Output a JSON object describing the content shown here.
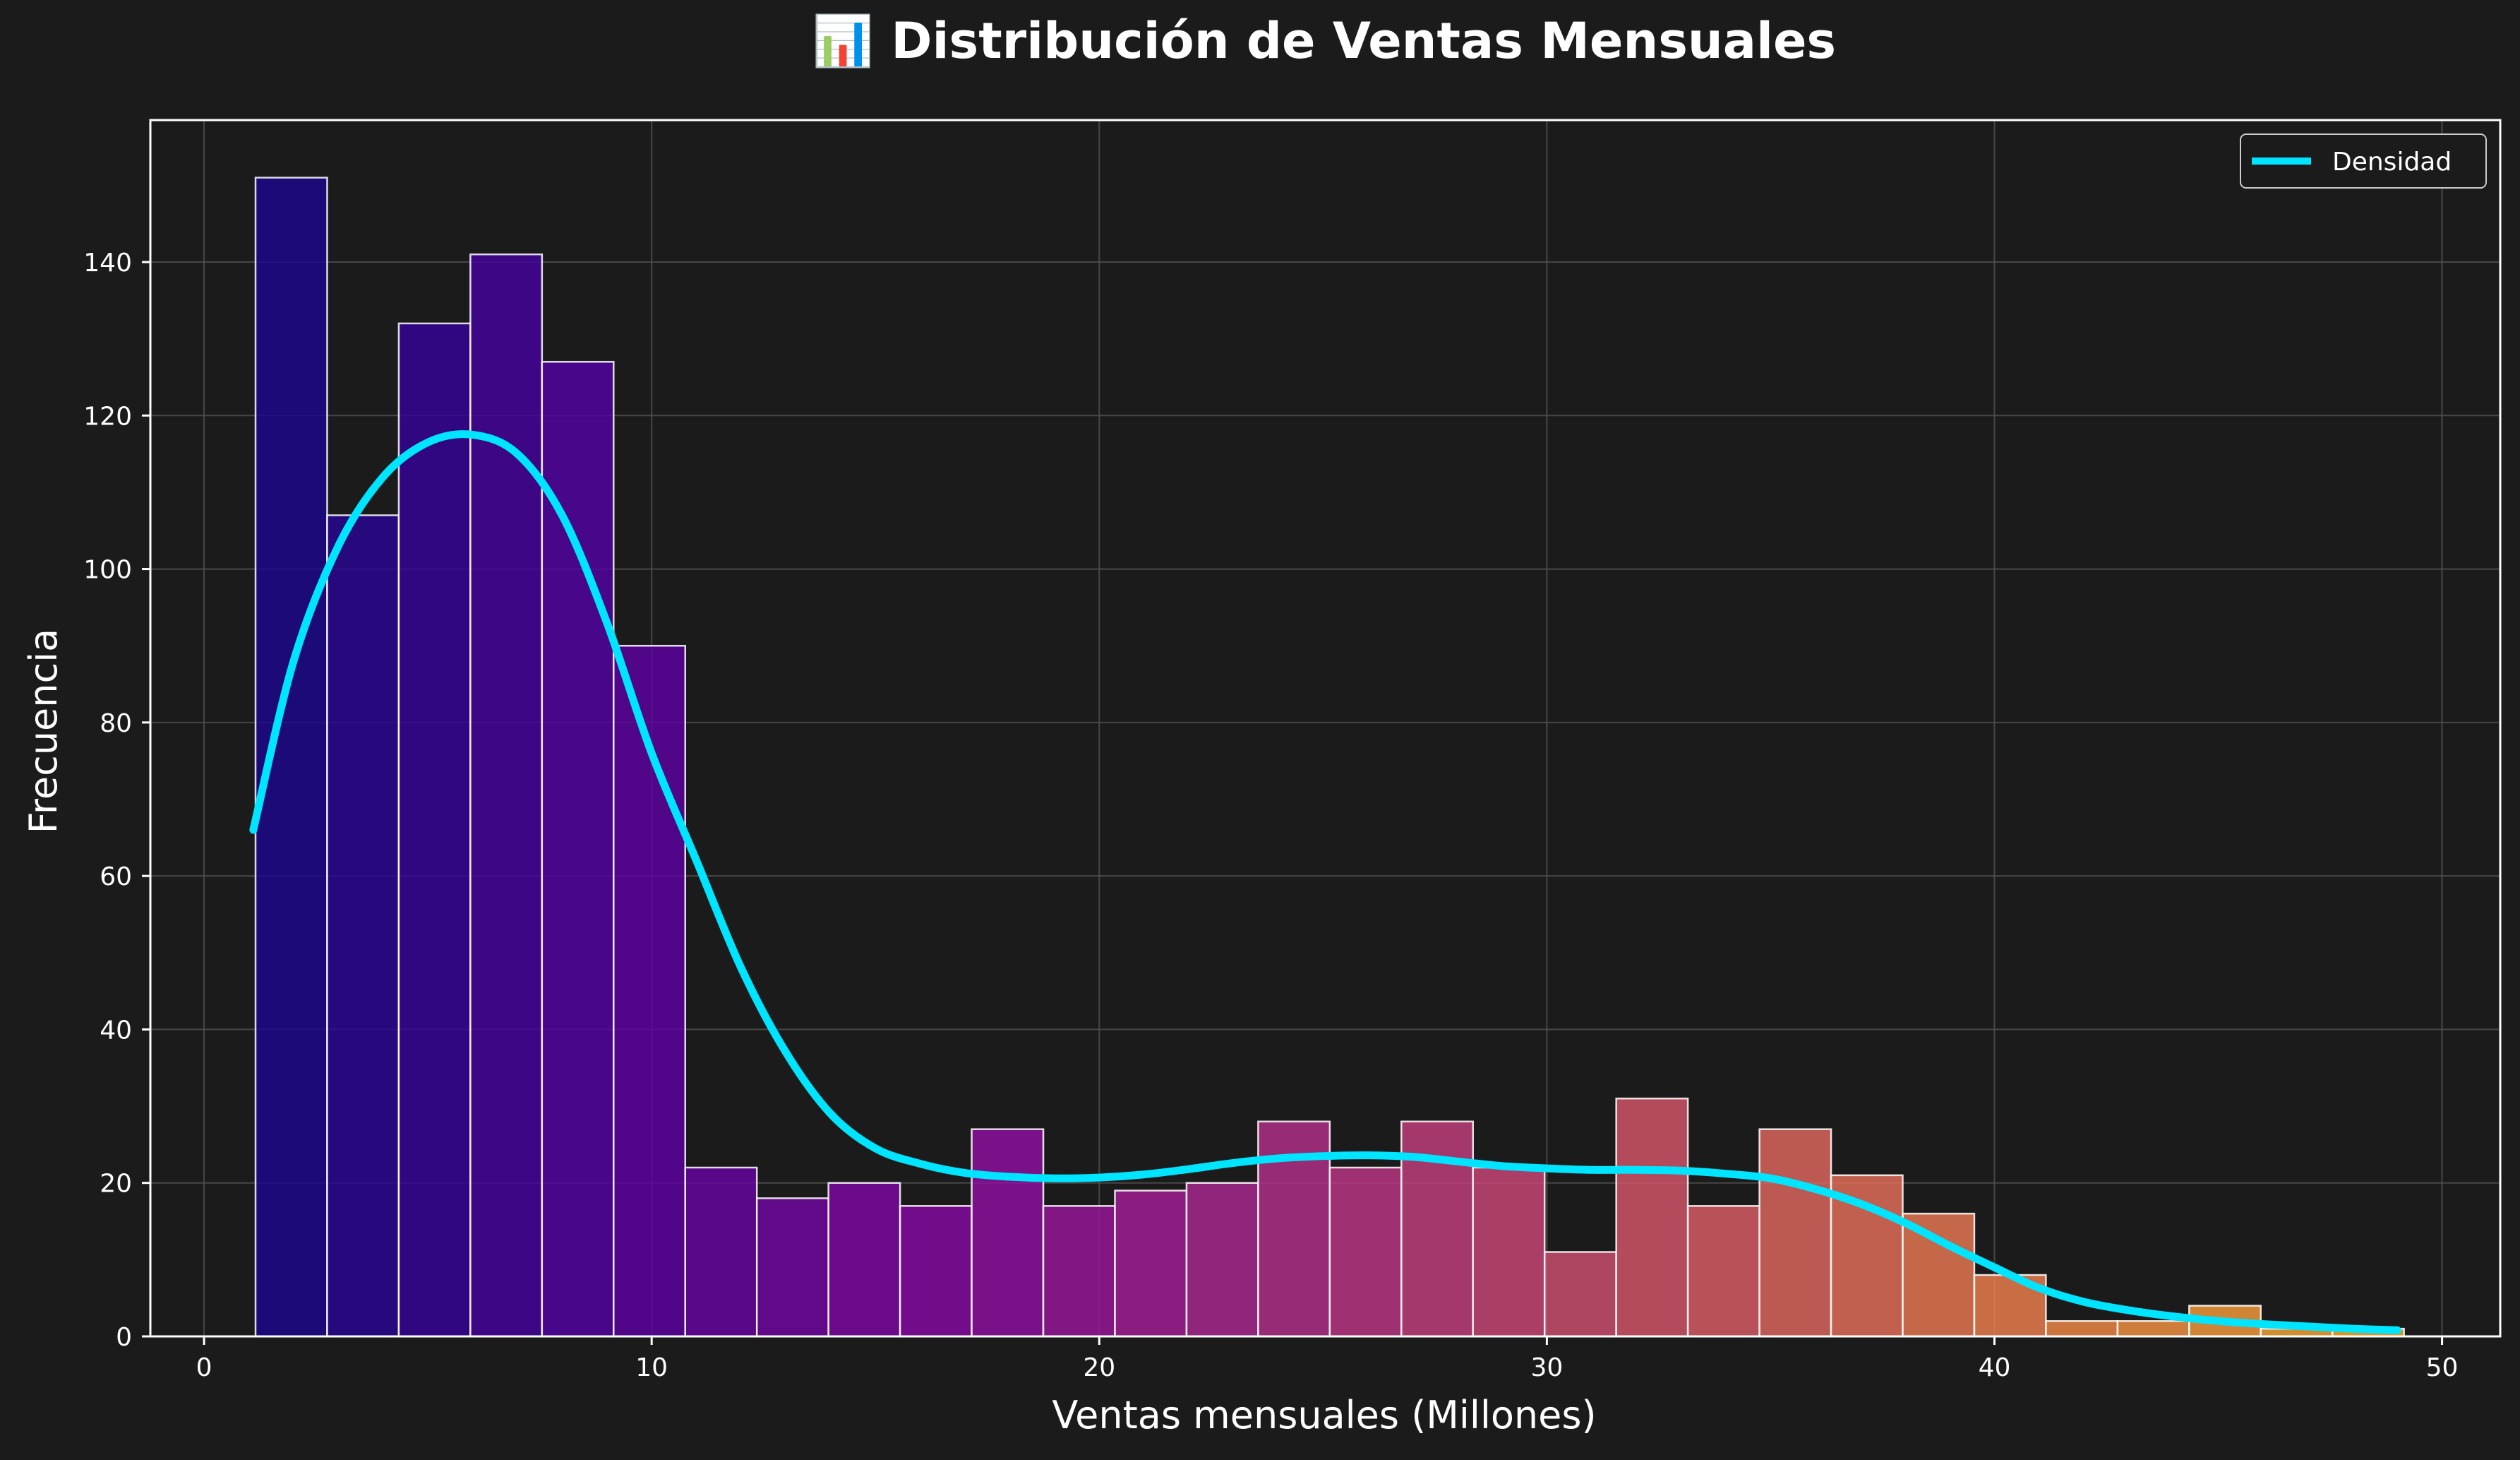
{
  "chart_data": {
    "type": "bar",
    "title": "📊 Distribución de Ventas Mensuales",
    "xlabel": "Ventas mensuales (Millones)",
    "ylabel": "Frecuencia",
    "xlim": [
      -1.2,
      51.3
    ],
    "ylim": [
      0,
      158.5
    ],
    "xticks": [
      0,
      10,
      20,
      30,
      40,
      50
    ],
    "yticks": [
      0,
      20,
      40,
      60,
      80,
      100,
      120,
      140
    ],
    "grid": true,
    "legend_position": "top-right",
    "colormap": "plasma",
    "colors": {
      "background": "#1b1b1b",
      "density_line": "#00e5ff",
      "bar_edge": "#ffffff",
      "grid": "#555555",
      "axes_edge": "#ffffff"
    },
    "bins": {
      "start": 1.15,
      "width": 1.6,
      "counts": [
        151,
        107,
        132,
        141,
        127,
        90,
        22,
        18,
        20,
        17,
        27,
        17,
        19,
        20,
        28,
        22,
        28,
        22,
        11,
        31,
        17,
        27,
        21,
        16,
        8,
        2,
        2,
        4,
        1,
        1
      ]
    },
    "density": {
      "name": "Densidad",
      "x": [
        1.1,
        2.0,
        3.0,
        4.0,
        5.0,
        6.0,
        7.0,
        8.0,
        9.0,
        10.0,
        11.0,
        12.0,
        13.0,
        14.0,
        15.0,
        16.0,
        17.0,
        18.0,
        19.0,
        20.0,
        21.0,
        22.0,
        23.0,
        24.0,
        25.0,
        26.0,
        27.0,
        28.0,
        29.0,
        30.0,
        31.0,
        32.0,
        33.0,
        34.0,
        35.0,
        36.0,
        37.0,
        38.0,
        39.0,
        40.0,
        41.0,
        42.0,
        43.0,
        44.0,
        45.0,
        46.0,
        47.0,
        48.0,
        49.0
      ],
      "y": [
        66,
        88,
        103,
        112,
        116.5,
        117.5,
        115,
        107,
        93,
        76,
        62,
        48,
        37,
        29,
        24.5,
        22.5,
        21.3,
        20.8,
        20.6,
        20.7,
        21.1,
        21.8,
        22.6,
        23.2,
        23.5,
        23.6,
        23.4,
        22.8,
        22.2,
        21.9,
        21.7,
        21.7,
        21.6,
        21.2,
        20.6,
        19.2,
        17.3,
        14.8,
        11.8,
        9.0,
        6.3,
        4.5,
        3.4,
        2.6,
        2.0,
        1.6,
        1.3,
        1.0,
        0.8
      ]
    }
  }
}
